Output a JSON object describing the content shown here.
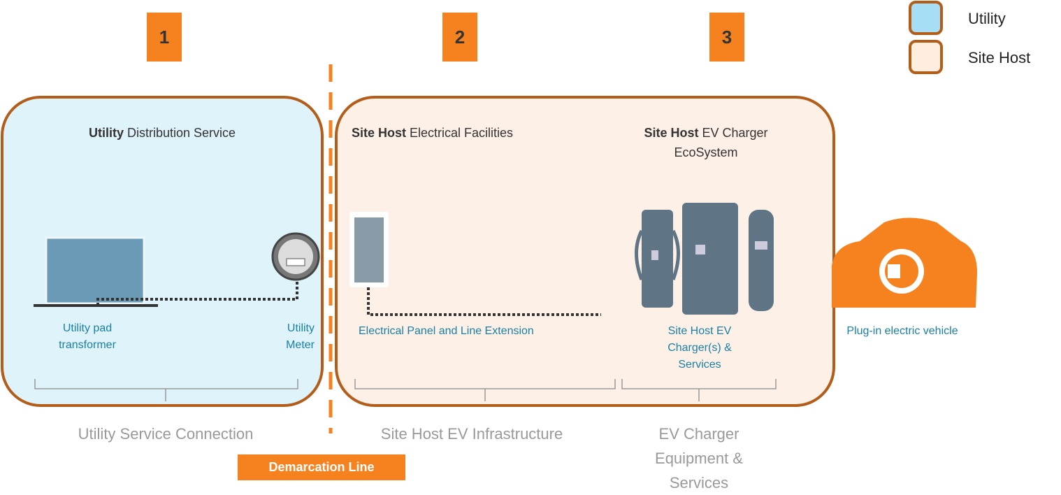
{
  "badges": [
    "1",
    "2",
    "3"
  ],
  "legend": [
    "Utility",
    "Site Host"
  ],
  "sections": {
    "utility": {
      "bold": "Utility",
      "text": "Distribution Service"
    },
    "facilities": {
      "bold": "Site Host",
      "text": "Electrical Facilities"
    },
    "ecosystem": {
      "bold": "Site Host",
      "text": "EV Charger EcoSystem"
    }
  },
  "labels": {
    "transformer": "Utility pad transformer",
    "meter": "Utility Meter",
    "panel": "Electrical Panel and Line Extension",
    "chargers": "Site Host EV Charger(s) & Services",
    "vehicle": "Plug-in electric vehicle"
  },
  "groups": [
    "Utility Service Connection",
    "Site Host EV Infrastructure",
    "EV Charger Equipment & Services"
  ],
  "demarcation": "Demarcation Line"
}
